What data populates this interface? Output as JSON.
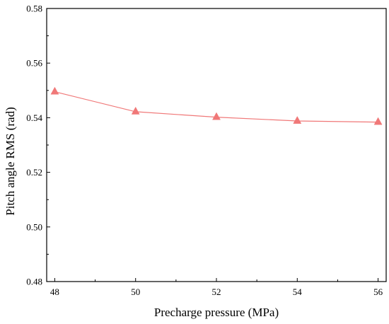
{
  "chart_data": {
    "type": "line",
    "title": "",
    "xlabel": "Precharge pressure (MPa)",
    "ylabel": "Pitch angle RMS (rad)",
    "xlim": [
      47.8,
      56.2
    ],
    "ylim": [
      0.48,
      0.58
    ],
    "xticks": [
      48,
      50,
      52,
      54,
      56
    ],
    "xtick_labels": [
      "48",
      "50",
      "52",
      "54",
      "56"
    ],
    "yticks": [
      0.48,
      0.5,
      0.52,
      0.54,
      0.56,
      0.58
    ],
    "ytick_labels": [
      "0.48",
      "0.50",
      "0.52",
      "0.54",
      "0.56",
      "0.58"
    ],
    "grid": false,
    "series": [
      {
        "marker": "triangle",
        "color": "#f07878",
        "x": [
          48,
          50,
          52,
          54,
          56
        ],
        "values": [
          0.5495,
          0.5422,
          0.5402,
          0.5388,
          0.5384
        ]
      }
    ]
  }
}
